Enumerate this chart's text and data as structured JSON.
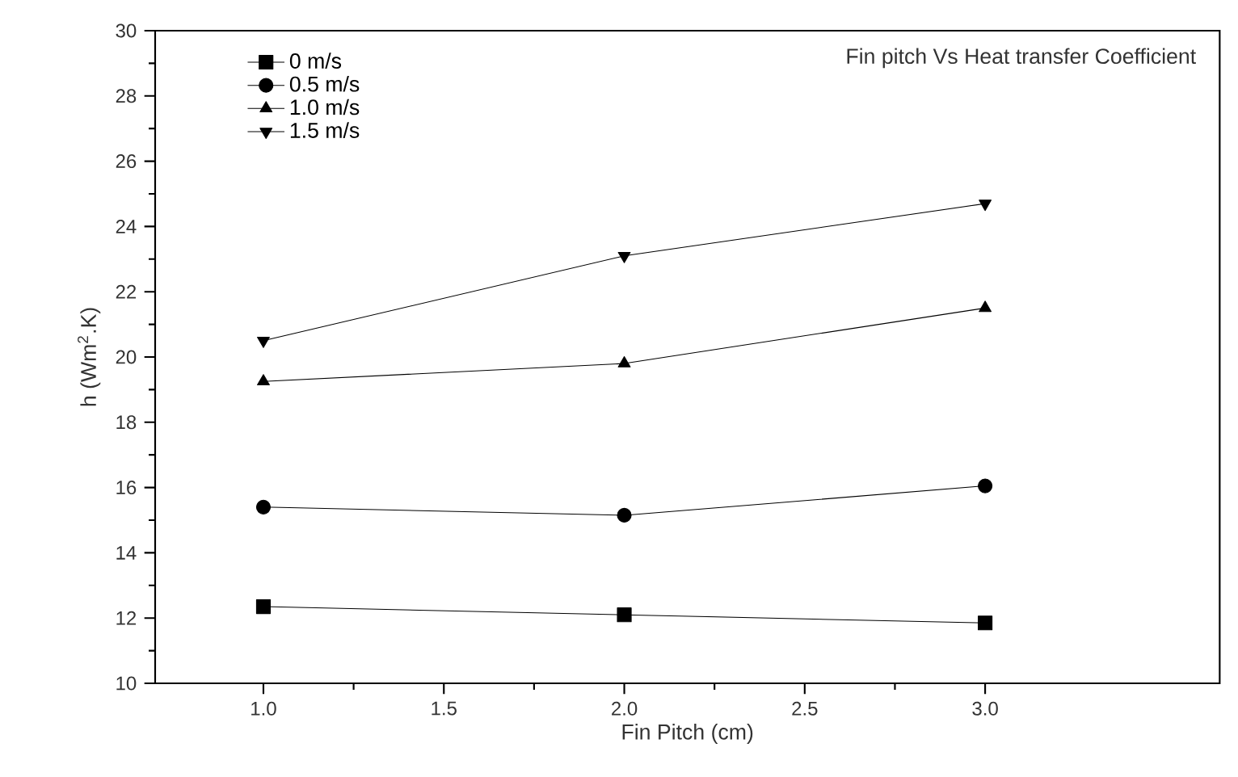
{
  "chart_data": {
    "type": "line",
    "title": "Fin pitch Vs Heat transfer Coefficient",
    "xlabel": "Fin Pitch (cm)",
    "ylabel": "h (Wm$^{2}$.K)",
    "x": [
      1.0,
      2.0,
      3.0
    ],
    "series": [
      {
        "name": "0 m/s",
        "color": "#000000",
        "marker": "square",
        "values": [
          12.35,
          12.1,
          11.85
        ]
      },
      {
        "name": "0.5 m/s",
        "color": "#000000",
        "marker": "circle",
        "values": [
          15.4,
          15.15,
          16.05
        ]
      },
      {
        "name": "1.0 m/s",
        "color": "#000000",
        "marker": "triangle",
        "values": [
          19.25,
          19.8,
          21.5
        ]
      },
      {
        "name": "1.5 m/s",
        "color": "#000000",
        "marker": "triangle down",
        "values": [
          20.5,
          23.1,
          24.7
        ]
      }
    ],
    "xlim": [
      0.7,
      3.65
    ],
    "xticks": [
      {
        "value": 1.0,
        "label": "1.0"
      },
      1.5,
      {
        "value": 2.0,
        "label": "2.0"
      },
      2.5,
      {
        "value": 3.0,
        "label": "3.0"
      }
    ],
    "ylim": [
      10,
      30
    ],
    "yticks": [
      10,
      12,
      14,
      16,
      18,
      20,
      22,
      24,
      26,
      28,
      30
    ],
    "legend": "top left",
    "grid": false,
    "line_style": "solid"
  }
}
